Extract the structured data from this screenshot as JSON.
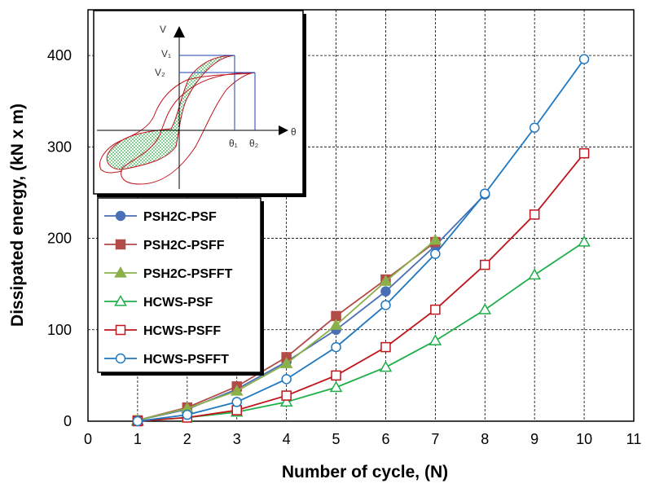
{
  "chart_data": {
    "type": "line",
    "title": "",
    "xlabel": "Number of cycle, (N)",
    "ylabel": "Dissipated energy, (kN x m)",
    "xlim": [
      0,
      11
    ],
    "ylim": [
      0,
      450
    ],
    "xticks": [
      0,
      1,
      2,
      3,
      4,
      5,
      6,
      7,
      8,
      9,
      10,
      11
    ],
    "yticks": [
      0,
      100,
      200,
      300,
      400
    ],
    "grid": "dashed",
    "legend_position": "middle-left",
    "series": [
      {
        "name": "PSH2C-PSF",
        "color": "#4a6fb5",
        "marker": "circle-filled",
        "x": [
          1,
          2,
          3,
          4,
          5,
          6,
          7,
          8
        ],
        "y": [
          1,
          13,
          35,
          65,
          100,
          142,
          192,
          248
        ]
      },
      {
        "name": "PSH2C-PSFF",
        "color": "#b24a47",
        "marker": "square-filled",
        "x": [
          1,
          2,
          3,
          4,
          5,
          6,
          7
        ],
        "y": [
          1,
          15,
          38,
          70,
          115,
          155,
          196
        ]
      },
      {
        "name": "PSH2C-PSFFT",
        "color": "#8ab04a",
        "marker": "triangle-filled",
        "x": [
          1,
          2,
          3,
          4,
          5,
          6,
          7
        ],
        "y": [
          1,
          14,
          33,
          63,
          105,
          153,
          198
        ]
      },
      {
        "name": "HCWS-PSF",
        "color": "#1fae4a",
        "marker": "triangle-open",
        "x": [
          1,
          2,
          3,
          4,
          5,
          6,
          7,
          8,
          9,
          10
        ],
        "y": [
          0,
          4,
          10,
          21,
          37,
          59,
          88,
          122,
          160,
          196
        ]
      },
      {
        "name": "HCWS-PSFF",
        "color": "#c0141b",
        "marker": "square-open",
        "x": [
          1,
          2,
          3,
          4,
          5,
          6,
          7,
          8,
          9,
          10
        ],
        "y": [
          0,
          4,
          12,
          28,
          50,
          81,
          122,
          171,
          226,
          293
        ]
      },
      {
        "name": "HCWS-PSFFT",
        "color": "#1f78c1",
        "marker": "circle-open",
        "x": [
          1,
          2,
          3,
          4,
          5,
          6,
          7,
          8,
          9,
          10
        ],
        "y": [
          0,
          7,
          21,
          46,
          81,
          127,
          183,
          249,
          321,
          396
        ]
      }
    ],
    "inset": {
      "y_axis_label": "V",
      "x_axis_label": "θ",
      "labels": [
        "V₁",
        "V₂",
        "θ₁",
        "θ₂"
      ]
    }
  }
}
